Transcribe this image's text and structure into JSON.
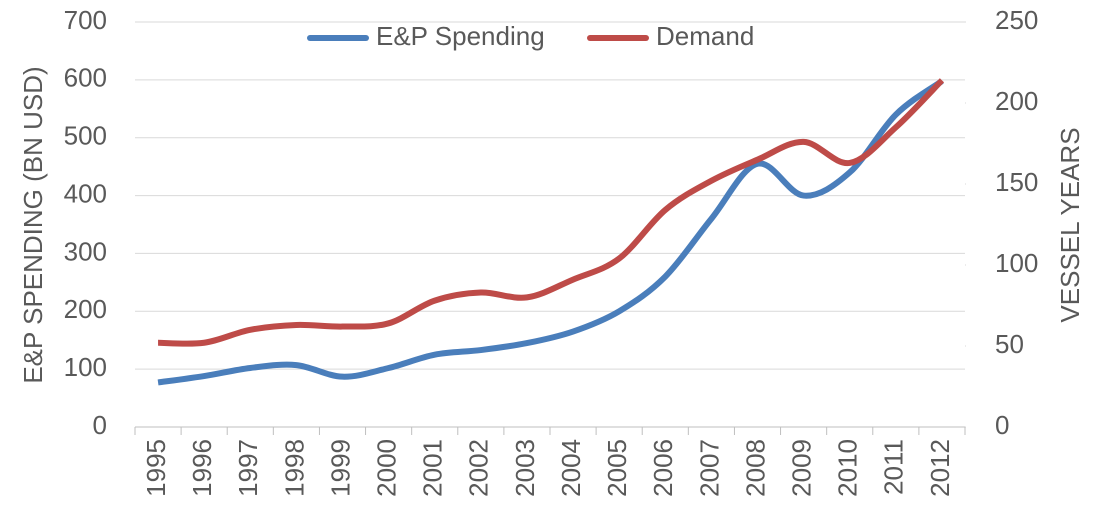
{
  "chart_data": {
    "type": "line",
    "categories": [
      "1995",
      "1996",
      "1997",
      "1998",
      "1999",
      "2000",
      "2001",
      "2002",
      "2003",
      "2004",
      "2005",
      "2006",
      "2007",
      "2008",
      "2009",
      "2010",
      "2011",
      "2012"
    ],
    "series": [
      {
        "name": "E&P Spending",
        "color": "#4a7ebb",
        "values": [
          77,
          88,
          102,
          107,
          87,
          102,
          125,
          133,
          145,
          165,
          200,
          260,
          360,
          455,
          400,
          440,
          540,
          598
        ]
      },
      {
        "name": "Demand",
        "color": "#be4b48",
        "axis": "y2",
        "values": [
          52,
          52,
          60,
          63,
          62,
          64,
          78,
          83,
          80,
          91,
          104,
          134,
          152,
          165,
          176,
          163,
          185,
          214
        ]
      }
    ],
    "ylabel": "E&P SPENDING (BN USD)",
    "y2label": "VESSEL YEARS",
    "ylim": [
      0,
      700
    ],
    "yticks": [
      0,
      100,
      200,
      300,
      400,
      500,
      600,
      700
    ],
    "y2lim": [
      0,
      250
    ],
    "y2ticks": [
      0,
      50,
      100,
      150,
      200,
      250
    ],
    "grid": true,
    "legend": "top"
  }
}
